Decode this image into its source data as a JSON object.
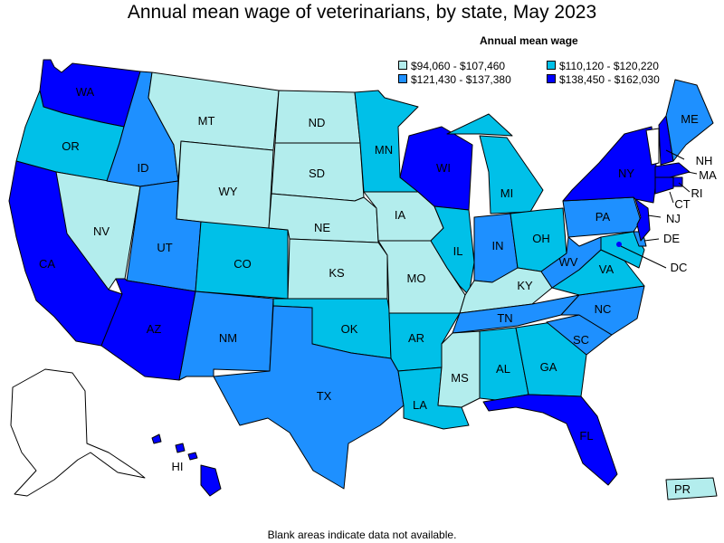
{
  "title": "Annual mean wage of veterinarians, by state, May 2023",
  "legend": {
    "title": "Annual mean wage",
    "items": [
      {
        "label": "$94,060 - $107,460",
        "color": "#b3eded"
      },
      {
        "label": "$110,120 - $120,220",
        "color": "#00c0e8"
      },
      {
        "label": "$121,430 - $137,380",
        "color": "#1e90ff"
      },
      {
        "label": "$138,450 - $162,030",
        "color": "#0000ff"
      }
    ]
  },
  "footnote": "Blank areas indicate data not available.",
  "states": {
    "WA": 4,
    "OR": 2,
    "CA": 4,
    "NV": 1,
    "ID": 3,
    "MT": 1,
    "WY": 1,
    "UT": 3,
    "CO": 2,
    "AZ": 4,
    "NM": 3,
    "ND": 1,
    "SD": 1,
    "NE": 1,
    "KS": 1,
    "OK": 2,
    "TX": 3,
    "MN": 2,
    "IA": 1,
    "MO": 1,
    "AR": 2,
    "LA": 2,
    "WI": 4,
    "IL": 2,
    "MI": 2,
    "IN": 3,
    "OH": 2,
    "KY": 1,
    "TN": 3,
    "MS": 1,
    "AL": 2,
    "GA": 2,
    "FL": 4,
    "SC": 3,
    "NC": 3,
    "VA": 2,
    "WV": 3,
    "PA": 3,
    "NY": 4,
    "ME": 3,
    "NH": 4,
    "VT": 0,
    "MA": 4,
    "RI": 4,
    "CT": 4,
    "NJ": 4,
    "DE": 3,
    "MD": 2,
    "DC": 4,
    "HI": 4,
    "AK": 0,
    "PR": 1
  },
  "labels": {
    "WA": "WA",
    "OR": "OR",
    "CA": "CA",
    "NV": "NV",
    "ID": "ID",
    "MT": "MT",
    "WY": "WY",
    "UT": "UT",
    "CO": "CO",
    "AZ": "AZ",
    "NM": "NM",
    "ND": "ND",
    "SD": "SD",
    "NE": "NE",
    "KS": "KS",
    "OK": "OK",
    "TX": "TX",
    "MN": "MN",
    "IA": "IA",
    "MO": "MO",
    "AR": "AR",
    "LA": "LA",
    "WI": "WI",
    "IL": "IL",
    "MI": "MI",
    "IN": "IN",
    "OH": "OH",
    "KY": "KY",
    "TN": "TN",
    "MS": "MS",
    "AL": "AL",
    "GA": "GA",
    "FL": "FL",
    "SC": "SC",
    "NC": "NC",
    "VA": "VA",
    "WV": "WV",
    "PA": "PA",
    "NY": "NY",
    "ME": "ME",
    "NH": "NH",
    "MA": "MA",
    "RI": "RI",
    "CT": "CT",
    "NJ": "NJ",
    "DE": "DE",
    "DC": "DC",
    "HI": "HI",
    "PR": "PR"
  }
}
